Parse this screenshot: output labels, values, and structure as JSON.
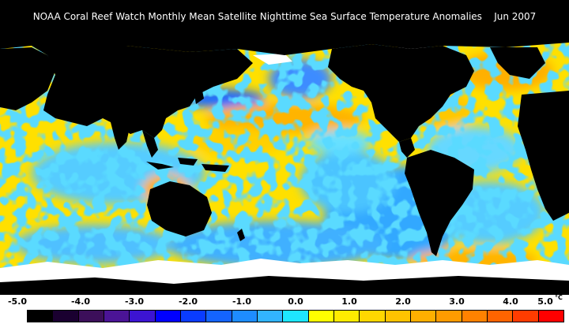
{
  "header": {
    "title": "NOAA Coral Reef Watch Monthly Mean Satellite Nighttime Sea Surface Temperature Anomalies",
    "date": "Jun 2007"
  },
  "legend": {
    "unit": "°C",
    "range": [
      -5.0,
      5.0
    ],
    "ticks": [
      "-5.0",
      "-4.0",
      "-3.0",
      "-2.0",
      "-1.0",
      "0.0",
      "1.0",
      "2.0",
      "3.0",
      "4.0",
      "5.0"
    ],
    "colors": [
      "#000000",
      "#1a0030",
      "#3c0f5a",
      "#4b1496",
      "#3c14d2",
      "#0000ff",
      "#0a3cff",
      "#1464ff",
      "#1e8cff",
      "#32b4ff",
      "#1ee6ff",
      "#ffff00",
      "#ffeb00",
      "#ffd700",
      "#ffc300",
      "#ffaf00",
      "#ff9b00",
      "#ff8200",
      "#ff6400",
      "#ff3c00",
      "#ff0000"
    ]
  },
  "map": {
    "land_color": "#000000",
    "ice_color": "#ffffff",
    "ocean_base_color": "#fff000",
    "projection": "equirectangular"
  }
}
